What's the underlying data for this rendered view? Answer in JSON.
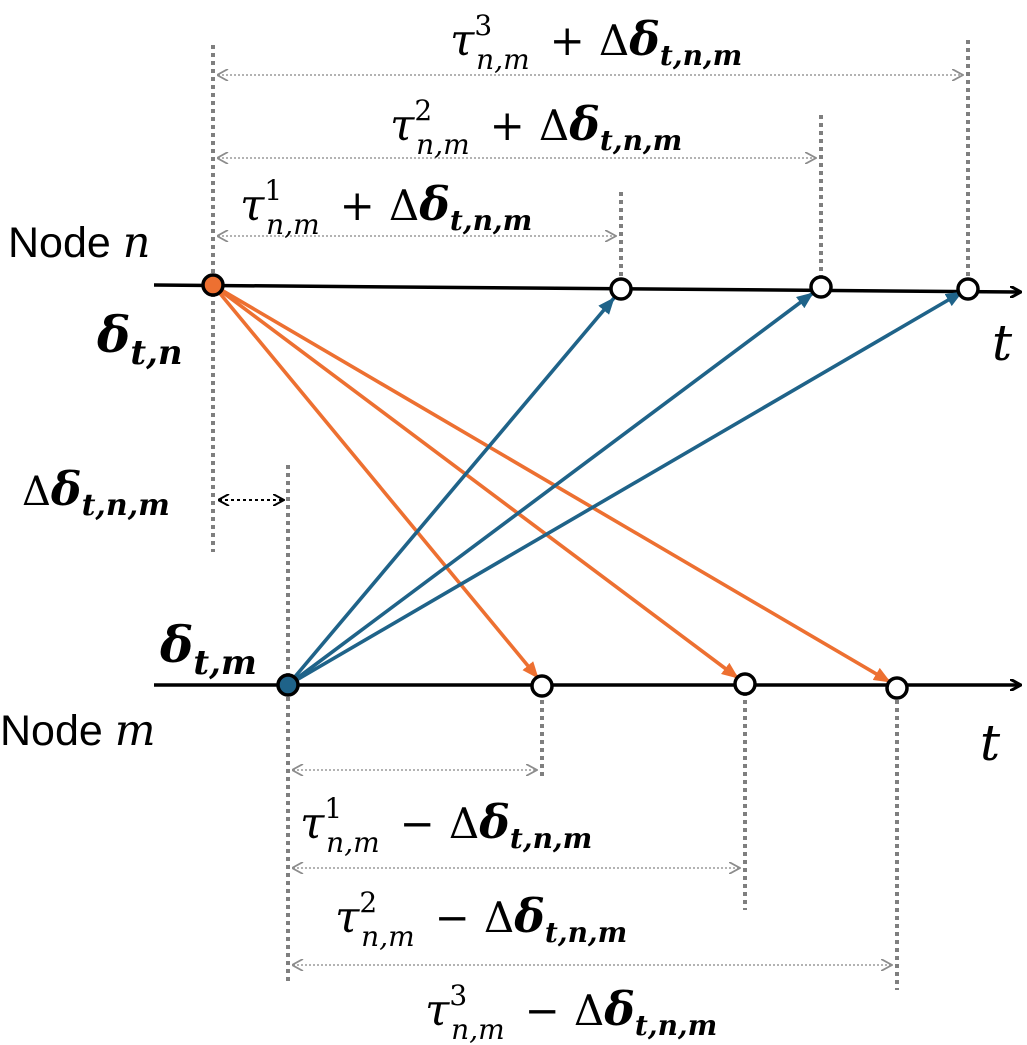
{
  "nodes": {
    "n": {
      "label": "Node ",
      "var": "n",
      "offset_symbol": "δ",
      "offset_sub": "t,n",
      "time_axis_label": "t"
    },
    "m": {
      "label": "Node ",
      "var": "m",
      "offset_symbol": "δ",
      "offset_sub": "t,m",
      "time_axis_label": "t"
    }
  },
  "offset_difference": {
    "prefix": "Δ",
    "symbol": "δ",
    "sub": "t,n,m"
  },
  "forward_delays": [
    {
      "tau": "τ",
      "sup": "1",
      "sub": "n,m",
      "op": "+",
      "delta": "Δ",
      "delta_sym": "δ",
      "delta_sub": "t,n,m"
    },
    {
      "tau": "τ",
      "sup": "2",
      "sub": "n,m",
      "op": "+",
      "delta": "Δ",
      "delta_sym": "δ",
      "delta_sub": "t,n,m"
    },
    {
      "tau": "τ",
      "sup": "3",
      "sub": "n,m",
      "op": "+",
      "delta": "Δ",
      "delta_sym": "δ",
      "delta_sub": "t,n,m"
    }
  ],
  "backward_delays": [
    {
      "tau": "τ",
      "sup": "1",
      "sub": "n,m",
      "op": "−",
      "delta": "Δ",
      "delta_sym": "δ",
      "delta_sub": "t,n,m"
    },
    {
      "tau": "τ",
      "sup": "2",
      "sub": "n,m",
      "op": "−",
      "delta": "Δ",
      "delta_sym": "δ",
      "delta_sub": "t,n,m"
    },
    {
      "tau": "τ",
      "sup": "3",
      "sub": "n,m",
      "op": "−",
      "delta": "Δ",
      "delta_sym": "δ",
      "delta_sub": "t,n,m"
    }
  ],
  "colors": {
    "node_n_to_m": "#ed7031",
    "node_m_to_n": "#1f6389",
    "guide": "#7f7f7f",
    "axis": "#000000"
  }
}
